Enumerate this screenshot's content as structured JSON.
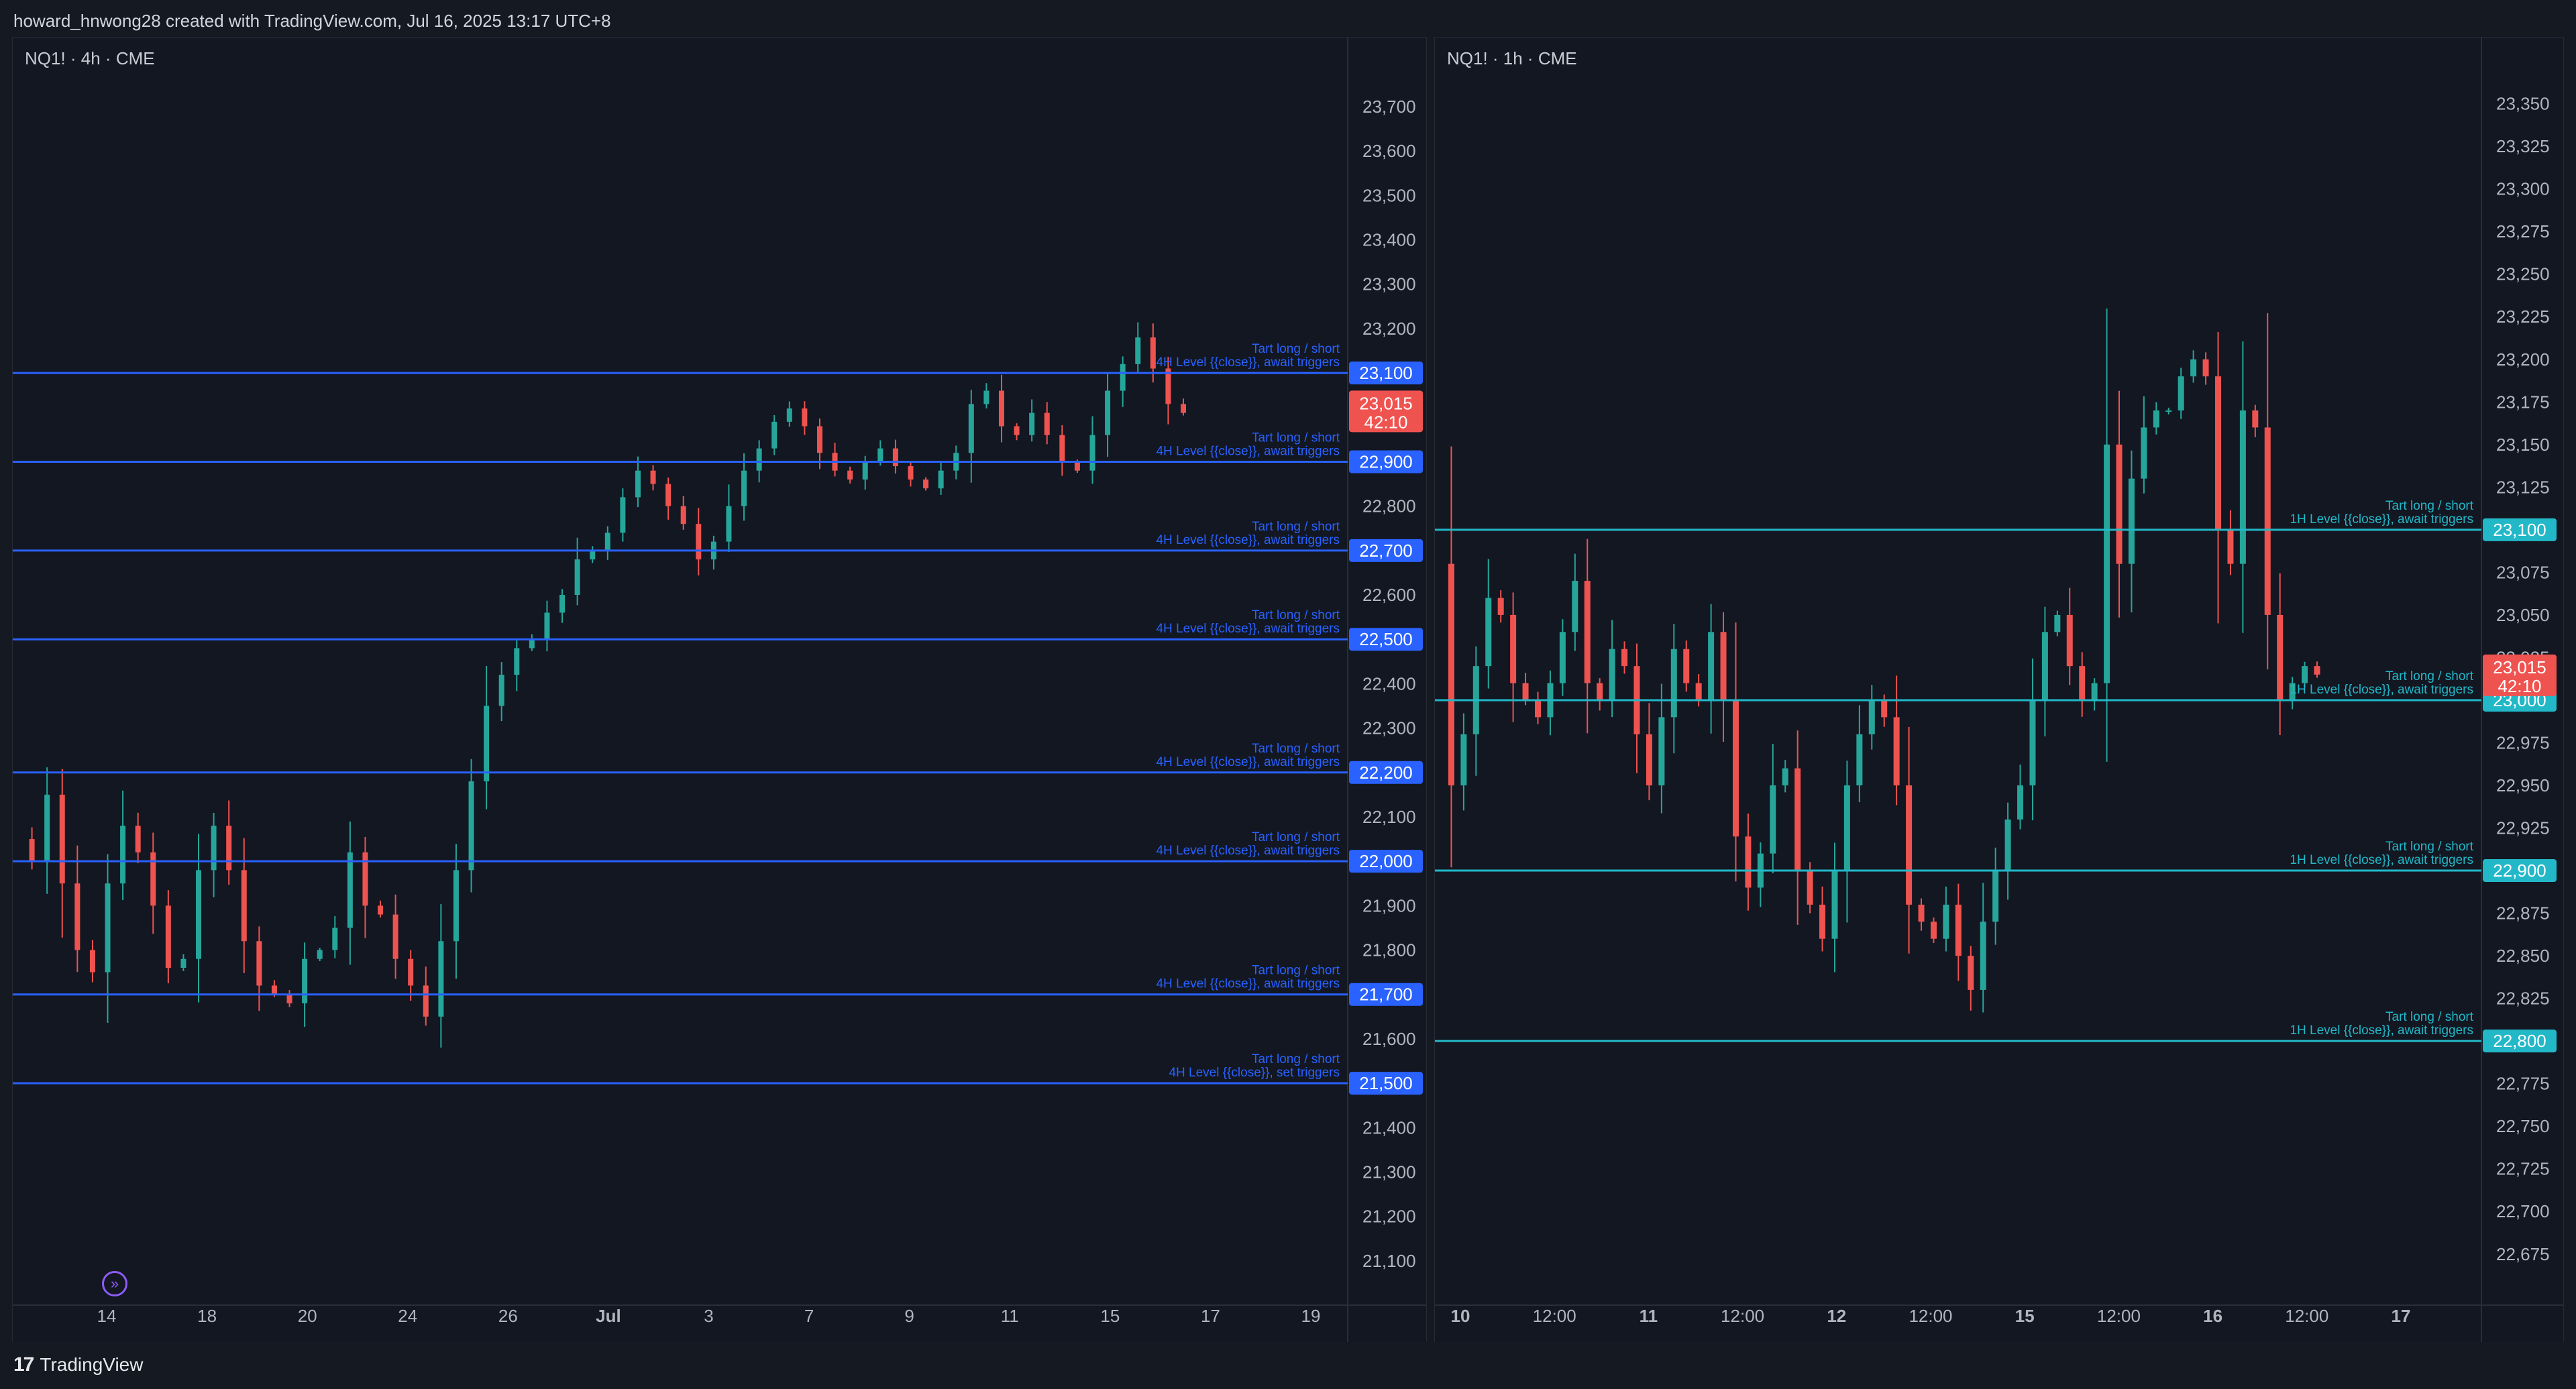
{
  "header": {
    "caption": "howard_hnwong28 created with TradingView.com, Jul 16, 2025 13:17 UTC+8"
  },
  "footer": {
    "brand": "TradingView",
    "brand_mark": "17"
  },
  "colors": {
    "up": "#26a69a",
    "down": "#ef5350",
    "left_level_line": "#2962ff",
    "right_level_line": "#22b8c8",
    "background": "#131722"
  },
  "chart_data": [
    {
      "type": "candlestick",
      "symbol_label": "NQ1! · 4h · CME",
      "ylim": [
        21000,
        23780
      ],
      "y_ticks": [
        "23,700",
        "23,600",
        "23,500",
        "23,400",
        "23,300",
        "23,200",
        "23,100",
        "23,000",
        "22,900",
        "22,800",
        "22,700",
        "22,600",
        "22,500",
        "22,400",
        "22,300",
        "22,200",
        "22,100",
        "22,000",
        "21,900",
        "21,800",
        "21,700",
        "21,600",
        "21,500",
        "21,400",
        "21,300",
        "21,200",
        "21,100"
      ],
      "x_ticks": [
        "14",
        "18",
        "20",
        "24",
        "26",
        "Jul",
        "3",
        "7",
        "9",
        "11",
        "15",
        "17",
        "19"
      ],
      "levels": [
        {
          "price": 23100,
          "label": "23,100",
          "note1": "Tart long / short",
          "note2": "4H Level {{close}}, await triggers"
        },
        {
          "price": 22900,
          "label": "22,900",
          "note1": "Tart long / short",
          "note2": "4H Level {{close}}, await triggers"
        },
        {
          "price": 22700,
          "label": "22,700",
          "note1": "Tart long / short",
          "note2": "4H Level {{close}}, await triggers"
        },
        {
          "price": 22500,
          "label": "22,500",
          "note1": "Tart long / short",
          "note2": "4H Level {{close}}, await triggers"
        },
        {
          "price": 22200,
          "label": "22,200",
          "note1": "Tart long / short",
          "note2": "4H Level {{close}}, await triggers"
        },
        {
          "price": 22000,
          "label": "22,000",
          "note1": "Tart long / short",
          "note2": "4H Level {{close}}, await triggers"
        },
        {
          "price": 21700,
          "label": "21,700",
          "note1": "Tart long / short",
          "note2": "4H Level {{close}}, await triggers"
        },
        {
          "price": 21500,
          "label": "21,500",
          "note1": "Tart long / short",
          "note2": "4H Level {{close}}, set triggers"
        }
      ],
      "current_price": {
        "price": 23015,
        "label": "23,015",
        "countdown": "42:10"
      },
      "path": [
        22050,
        22000,
        22150,
        21950,
        21800,
        21750,
        21950,
        22080,
        22020,
        21900,
        21760,
        21780,
        21980,
        22080,
        21980,
        21820,
        21720,
        21700,
        21680,
        21780,
        21800,
        21850,
        22020,
        21900,
        21880,
        21780,
        21720,
        21650,
        21820,
        21980,
        22180,
        22350,
        22420,
        22480,
        22500,
        22560,
        22600,
        22680,
        22700,
        22740,
        22820,
        22880,
        22850,
        22800,
        22760,
        22680,
        22720,
        22800,
        22880,
        22930,
        22990,
        23020,
        22980,
        22920,
        22880,
        22860,
        22900,
        22930,
        22890,
        22860,
        22840,
        22880,
        22920,
        23030,
        23060,
        22980,
        22960,
        23010,
        22960,
        22900,
        22880,
        22960,
        23060,
        23120,
        23180,
        23110,
        23030,
        23010
      ]
    },
    {
      "type": "candlestick",
      "symbol_label": "NQ1! · 1h · CME",
      "ylim": [
        22645,
        23377
      ],
      "y_ticks": [
        "23,350",
        "23,325",
        "23,300",
        "23,275",
        "23,250",
        "23,225",
        "23,200",
        "23,175",
        "23,150",
        "23,125",
        "23,100",
        "23,075",
        "23,050",
        "23,025",
        "23,000",
        "22,975",
        "22,950",
        "22,925",
        "22,900",
        "22,875",
        "22,850",
        "22,825",
        "22,800",
        "22,775",
        "22,750",
        "22,725",
        "22,700",
        "22,675"
      ],
      "x_ticks": [
        "10",
        "12:00",
        "11",
        "12:00",
        "12",
        "12:00",
        "15",
        "12:00",
        "16",
        "12:00",
        "17"
      ],
      "levels": [
        {
          "price": 23100,
          "label": "23,100",
          "note1": "Tart long / short",
          "note2": "1H Level {{close}}, await triggers"
        },
        {
          "price": 23000,
          "label": "23,000",
          "note1": "Tart long / short",
          "note2": "1H Level {{close}}, await triggers"
        },
        {
          "price": 22900,
          "label": "22,900",
          "note1": "Tart long / short",
          "note2": "1H Level {{close}}, await triggers"
        },
        {
          "price": 22800,
          "label": "22,800",
          "note1": "Tart long / short",
          "note2": "1H Level {{close}}, await triggers"
        }
      ],
      "current_price": {
        "price": 23015,
        "label": "23,015",
        "countdown": "42:10"
      },
      "path": [
        23080,
        22950,
        22980,
        23020,
        23060,
        23050,
        23010,
        23000,
        22990,
        23010,
        23040,
        23070,
        23010,
        23000,
        23030,
        23020,
        22980,
        22950,
        22990,
        23030,
        23010,
        23000,
        23040,
        23000,
        22920,
        22890,
        22910,
        22950,
        22960,
        22900,
        22880,
        22860,
        22900,
        22950,
        22980,
        23000,
        22990,
        22950,
        22880,
        22870,
        22860,
        22880,
        22850,
        22830,
        22870,
        22900,
        22930,
        22950,
        23000,
        23040,
        23050,
        23020,
        23000,
        23010,
        23150,
        23080,
        23130,
        23160,
        23170,
        23170,
        23190,
        23200,
        23190,
        23100,
        23080,
        23170,
        23160,
        23050,
        23000,
        23010,
        23020,
        23015
      ]
    }
  ]
}
